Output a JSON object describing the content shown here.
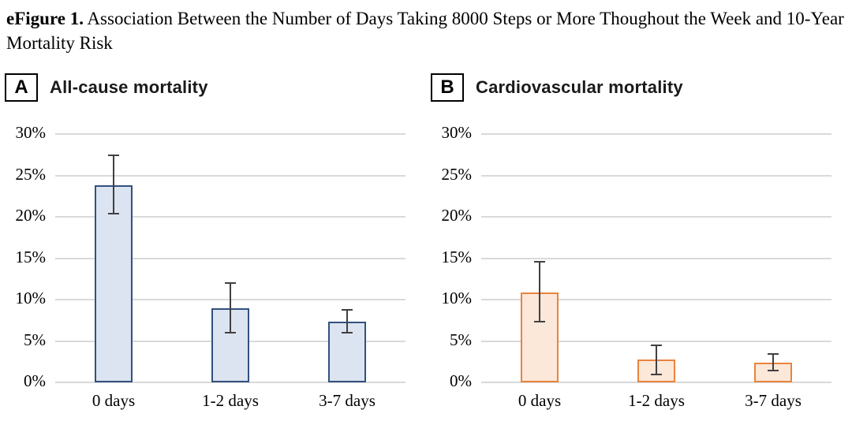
{
  "figure": {
    "label": "eFigure 1.",
    "title": " Association Between the Number of Days Taking 8000 Steps or More Thoughout the Week and 10-Year Mortality Risk"
  },
  "chart_data": [
    {
      "type": "bar",
      "panel_letter": "A",
      "title": "All-cause mortality",
      "categories": [
        "0 days",
        "1-2 days",
        "3-7 days"
      ],
      "values": [
        23.8,
        9.0,
        7.3
      ],
      "error_low": [
        20.4,
        6.0,
        6.0
      ],
      "error_high": [
        27.4,
        12.0,
        8.8
      ],
      "xlabel": "",
      "ylabel": "",
      "ylim": [
        0,
        30
      ],
      "ytick_step": 5,
      "ytick_suffix": "%",
      "grid": true,
      "legend": "none",
      "bar_fill": "#dce4f1",
      "bar_border": "#32517f",
      "error_color": "#404040",
      "grid_color": "#d9d9d9"
    },
    {
      "type": "bar",
      "panel_letter": "B",
      "title": "Cardiovascular mortality",
      "categories": [
        "0 days",
        "1-2 days",
        "3-7 days"
      ],
      "values": [
        10.9,
        2.8,
        2.4
      ],
      "error_low": [
        7.3,
        1.0,
        1.4
      ],
      "error_high": [
        14.6,
        4.5,
        3.4
      ],
      "xlabel": "",
      "ylabel": "",
      "ylim": [
        0,
        30
      ],
      "ytick_step": 5,
      "ytick_suffix": "%",
      "grid": true,
      "legend": "none",
      "bar_fill": "#fce8d9",
      "bar_border": "#e8843d",
      "error_color": "#404040",
      "grid_color": "#d9d9d9"
    }
  ]
}
